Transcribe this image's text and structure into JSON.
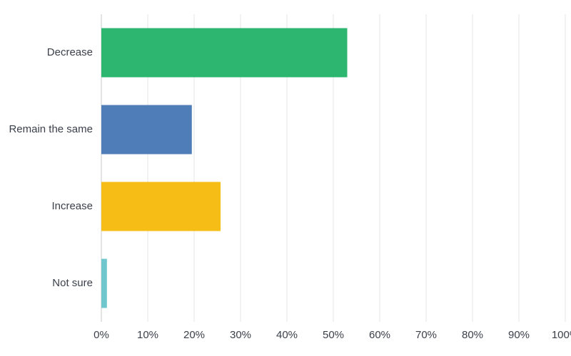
{
  "chart_data": {
    "type": "hbar",
    "categories": [
      "Decrease",
      "Remain the same",
      "Increase",
      "Not sure"
    ],
    "values": [
      53,
      19.5,
      25.7,
      1.2
    ],
    "colors": [
      "#2db670",
      "#4e7db8",
      "#f6bd16",
      "#6fc7cd"
    ],
    "xlim": [
      0,
      100
    ],
    "xticks": [
      {
        "value": 0,
        "label": "0%"
      },
      {
        "value": 10,
        "label": "10%"
      },
      {
        "value": 20,
        "label": "20%"
      },
      {
        "value": 30,
        "label": "30%"
      },
      {
        "value": 40,
        "label": "40%"
      },
      {
        "value": 50,
        "label": "50%"
      },
      {
        "value": 60,
        "label": "60%"
      },
      {
        "value": 70,
        "label": "70%"
      },
      {
        "value": 80,
        "label": "80%"
      },
      {
        "value": 90,
        "label": "90%"
      },
      {
        "value": 100,
        "label": "100%"
      }
    ],
    "grid": true
  }
}
